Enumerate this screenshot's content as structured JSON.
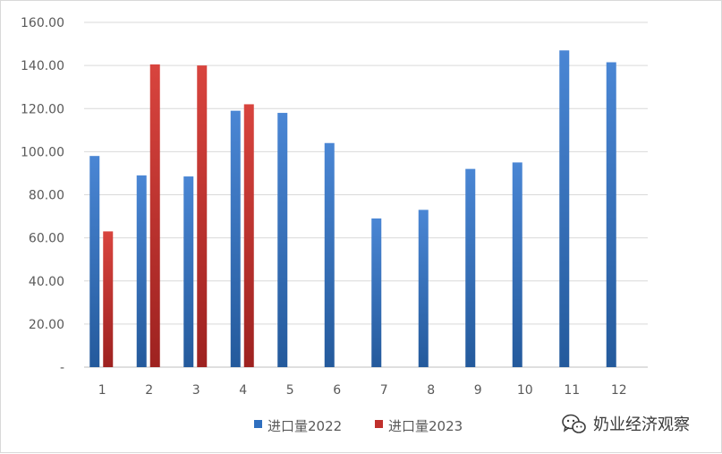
{
  "chart_data": {
    "type": "bar",
    "categories": [
      "1",
      "2",
      "3",
      "4",
      "5",
      "6",
      "7",
      "8",
      "9",
      "10",
      "11",
      "12"
    ],
    "series": [
      {
        "name": "进口量2022",
        "color": "#2f6fbf",
        "values": [
          98.0,
          89.0,
          88.5,
          119.0,
          118.0,
          104.0,
          69.0,
          73.0,
          92.0,
          95.0,
          147.0,
          141.5
        ]
      },
      {
        "name": "进口量2023",
        "color": "#c0302c",
        "values": [
          63.0,
          140.5,
          140.0,
          122.0,
          null,
          null,
          null,
          null,
          null,
          null,
          null,
          null
        ]
      }
    ],
    "y_ticks": [
      "-",
      "20.00",
      "40.00",
      "60.00",
      "80.00",
      "100.00",
      "120.00",
      "140.00",
      "160.00"
    ],
    "ylim": [
      0,
      160
    ],
    "grid": true,
    "legend_position": "bottom",
    "title": "",
    "xlabel": "",
    "ylabel": ""
  },
  "watermark": {
    "text": "奶业经济观察",
    "icon": "wechat-icon"
  }
}
